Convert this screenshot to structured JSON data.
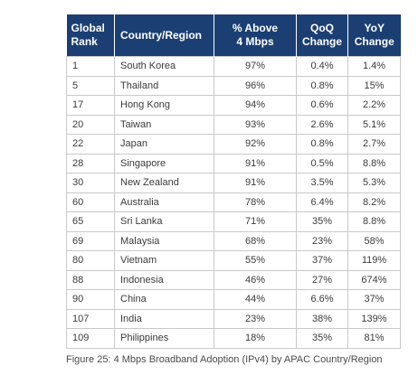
{
  "table": {
    "headers": {
      "rank_line1": "Global",
      "rank_line2": "Rank",
      "country": "Country/Region",
      "pct_line1": "% Above",
      "pct_line2": "4 Mbps",
      "qoq_line1": "QoQ",
      "qoq_line2": "Change",
      "yoy_line1": "YoY",
      "yoy_line2": "Change"
    },
    "header_color": "#1b3f73",
    "rows": [
      {
        "rank": "1",
        "country": "South Korea",
        "pct": "97%",
        "qoq": "0.4%",
        "yoy": "1.4%"
      },
      {
        "rank": "5",
        "country": "Thailand",
        "pct": "96%",
        "qoq": "0.8%",
        "yoy": "15%"
      },
      {
        "rank": "17",
        "country": "Hong Kong",
        "pct": "94%",
        "qoq": "0.6%",
        "yoy": "2.2%"
      },
      {
        "rank": "20",
        "country": "Taiwan",
        "pct": "93%",
        "qoq": "2.6%",
        "yoy": "5.1%"
      },
      {
        "rank": "22",
        "country": "Japan",
        "pct": "92%",
        "qoq": "0.8%",
        "yoy": "2.7%"
      },
      {
        "rank": "28",
        "country": "Singapore",
        "pct": "91%",
        "qoq": "0.5%",
        "yoy": "8.8%"
      },
      {
        "rank": "30",
        "country": "New Zealand",
        "pct": "91%",
        "qoq": "3.5%",
        "yoy": "5.3%"
      },
      {
        "rank": "60",
        "country": "Australia",
        "pct": "78%",
        "qoq": "6.4%",
        "yoy": "8.2%"
      },
      {
        "rank": "65",
        "country": "Sri Lanka",
        "pct": "71%",
        "qoq": "35%",
        "yoy": "8.8%"
      },
      {
        "rank": "69",
        "country": "Malaysia",
        "pct": "68%",
        "qoq": "23%",
        "yoy": "58%"
      },
      {
        "rank": "80",
        "country": "Vietnam",
        "pct": "55%",
        "qoq": "37%",
        "yoy": "119%"
      },
      {
        "rank": "88",
        "country": "Indonesia",
        "pct": "46%",
        "qoq": "27%",
        "yoy": "674%"
      },
      {
        "rank": "90",
        "country": "China",
        "pct": "44%",
        "qoq": "6.6%",
        "yoy": "37%"
      },
      {
        "rank": "107",
        "country": "India",
        "pct": "23%",
        "qoq": "38%",
        "yoy": "139%"
      },
      {
        "rank": "109",
        "country": "Philippines",
        "pct": "18%",
        "qoq": "35%",
        "yoy": "81%"
      }
    ]
  },
  "caption": "Figure 25: 4 Mbps Broadband Adoption (IPv4) by APAC Country/Region"
}
